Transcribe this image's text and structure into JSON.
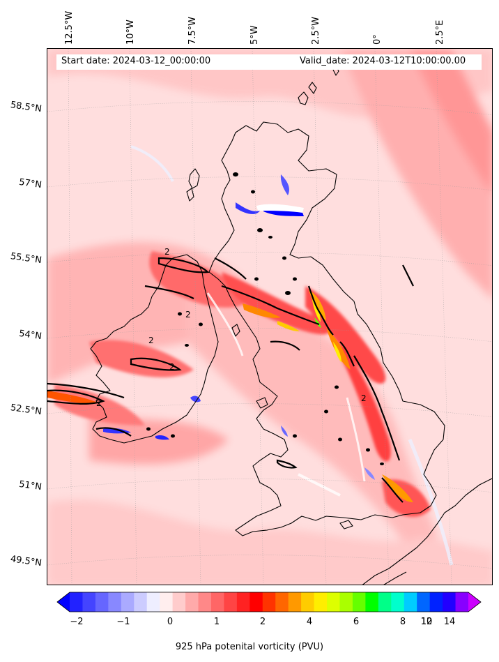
{
  "map": {
    "start_date": "Start date: 2024-03-12_00:00:00",
    "valid_date": "Valid_date: 2024-03-12T10:00:00.00",
    "lon_labels": [
      "12.5°W",
      "10°W",
      "7.5°W",
      "5°W",
      "2.5°W",
      "0°",
      "2.5°E"
    ],
    "lat_labels": [
      "58.5°N",
      "57°N",
      "55.5°N",
      "54°N",
      "52.5°N",
      "51°N",
      "49.5°N"
    ],
    "contour_label": "2"
  },
  "colorbar": {
    "tick_labels": [
      "−2",
      "−1",
      "0",
      "1",
      "2",
      "4",
      "6",
      "8",
      "10",
      "12",
      "14"
    ],
    "title": "925 hPa potenital vorticity (PVU)",
    "colors": [
      "#0000ff",
      "#2222ff",
      "#4444ff",
      "#6666ff",
      "#8888ff",
      "#aaaaff",
      "#ccccff",
      "#eeeeff",
      "#ffeeee",
      "#ffcccc",
      "#ffaaaa",
      "#ff8888",
      "#ff6666",
      "#ff4444",
      "#ff2222",
      "#ff0000",
      "#ff3300",
      "#ff6600",
      "#ff9900",
      "#ffcc00",
      "#ffee00",
      "#ddff00",
      "#aaff00",
      "#66ff00",
      "#00ff00",
      "#00ff88",
      "#00ffcc",
      "#00ccff",
      "#0066ff",
      "#0022ff",
      "#2200ff",
      "#8800ff",
      "#cc00ff"
    ]
  }
}
